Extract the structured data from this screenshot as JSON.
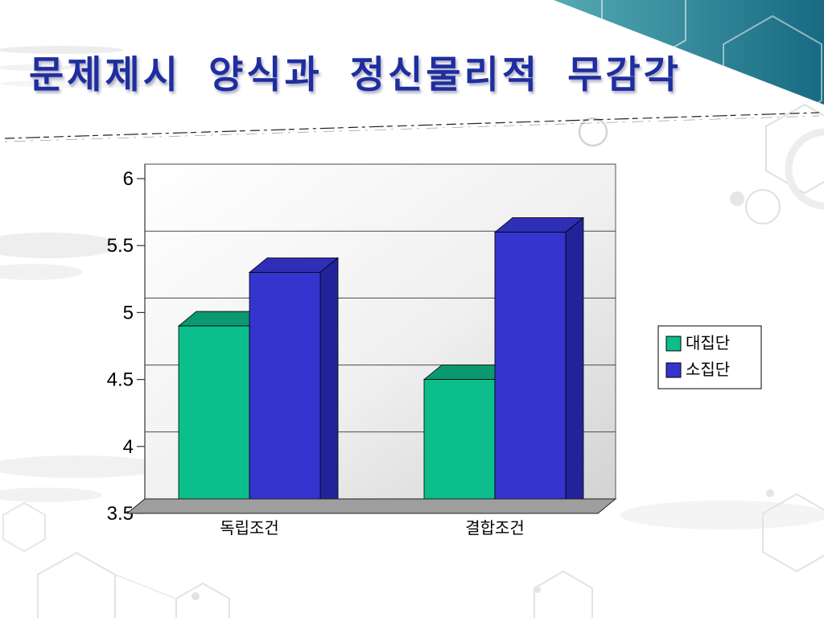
{
  "slide": {
    "title": "문제제시  양식과  정신물리적  무감각"
  },
  "chart_data": {
    "type": "bar",
    "style": "3d",
    "title": "",
    "categories": [
      "독립조건",
      "결합조건"
    ],
    "series": [
      {
        "name": "대집단",
        "values": [
          4.9,
          4.5
        ],
        "color_front": "#0CBE8C",
        "color_top": "#0A9970",
        "color_side": "#078A64"
      },
      {
        "name": "소집단",
        "values": [
          5.3,
          5.6
        ],
        "color_front": "#3434CE",
        "color_top": "#2E2EB6",
        "color_side": "#232399"
      }
    ],
    "ylim": [
      3.5,
      6
    ],
    "yticks": [
      3.5,
      4,
      4.5,
      5,
      5.5,
      6
    ],
    "ytick_step": 0.5,
    "grid": true,
    "legend_position": "right",
    "xlabel": "",
    "ylabel": ""
  },
  "colors": {
    "title_text": "#1F2E9E",
    "corner_triangle_start": "#55AAB4",
    "corner_triangle_end": "#176A82",
    "chart_floor": "#9E9E9E",
    "axis_text": "#000000"
  }
}
